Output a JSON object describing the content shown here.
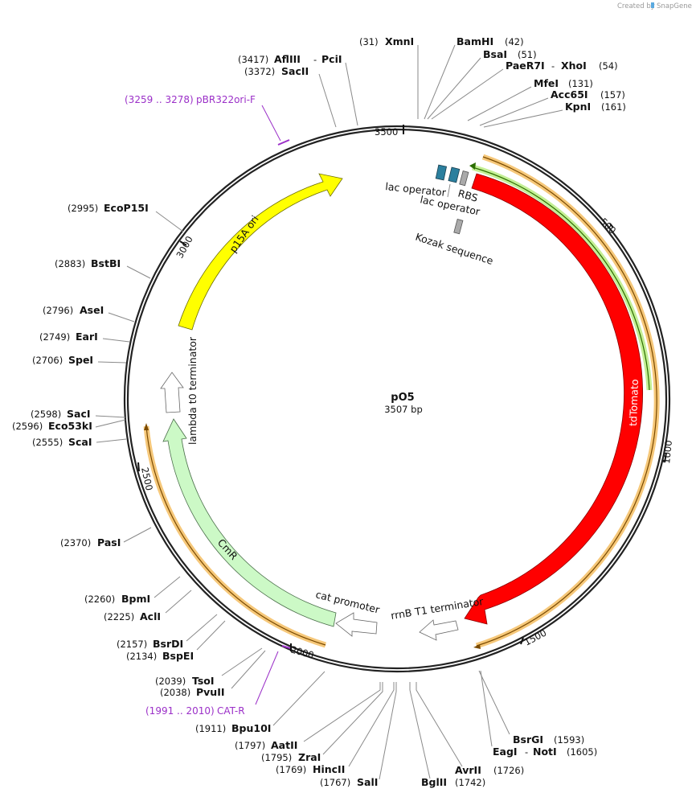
{
  "brand": {
    "created_by": "Created by",
    "product": "SnapGene"
  },
  "plasmid": {
    "name": "pO5",
    "length_label": "3507 bp"
  },
  "ticks": [
    "500",
    "1000",
    "1500",
    "2000",
    "2500",
    "3000",
    "3500"
  ],
  "features": {
    "tdtomato": "tdTomato",
    "p15a": "p15A ori",
    "cmr": "CmR",
    "lambda": "lambda t0 terminator",
    "rrnb": "rrnB T1 terminator",
    "cat_promoter": "cat promoter",
    "lac_operator_1": "lac operator",
    "lac_operator_2": "lac operator",
    "rbs": "RBS",
    "kozak": "Kozak sequence"
  },
  "primers": [
    {
      "range": "(3259 .. 3278)",
      "name": "pBR322ori-F"
    },
    {
      "range": "(1991 .. 2010)",
      "name": "CAT-R"
    }
  ],
  "sites": [
    {
      "pos": "(31)",
      "name": "XmnI"
    },
    {
      "name": "BamHI",
      "pos": "(42)"
    },
    {
      "name": "BsaI",
      "pos": "(51)"
    },
    {
      "name": "PaeR7I",
      "sep": "-",
      "name2": "XhoI",
      "pos": "(54)"
    },
    {
      "name": "MfeI",
      "pos": "(131)"
    },
    {
      "name": "Acc65I",
      "pos": "(157)"
    },
    {
      "name": "KpnI",
      "pos": "(161)"
    },
    {
      "pos": "(3417)",
      "name": "AflIII",
      "sep": "-",
      "name2": "PciI"
    },
    {
      "pos": "(3372)",
      "name": "SacII"
    },
    {
      "pos": "(2995)",
      "name": "EcoP15I"
    },
    {
      "pos": "(2883)",
      "name": "BstBI"
    },
    {
      "pos": "(2796)",
      "name": "AseI"
    },
    {
      "pos": "(2749)",
      "name": "EarI"
    },
    {
      "pos": "(2706)",
      "name": "SpeI"
    },
    {
      "pos": "(2598)",
      "name": "SacI"
    },
    {
      "pos": "(2596)",
      "name": "Eco53kI"
    },
    {
      "pos": "(2555)",
      "name": "ScaI"
    },
    {
      "pos": "(2370)",
      "name": "PasI"
    },
    {
      "pos": "(2260)",
      "name": "BpmI"
    },
    {
      "pos": "(2225)",
      "name": "AclI"
    },
    {
      "pos": "(2157)",
      "name": "BsrDI"
    },
    {
      "pos": "(2134)",
      "name": "BspEI"
    },
    {
      "pos": "(2039)",
      "name": "TsoI"
    },
    {
      "pos": "(2038)",
      "name": "PvuII"
    },
    {
      "pos": "(1911)",
      "name": "Bpu10I"
    },
    {
      "pos": "(1797)",
      "name": "AatII"
    },
    {
      "pos": "(1795)",
      "name": "ZraI"
    },
    {
      "pos": "(1769)",
      "name": "HincII"
    },
    {
      "pos": "(1767)",
      "name": "SalI"
    },
    {
      "name": "BglII",
      "pos": "(1742)"
    },
    {
      "name": "AvrII",
      "pos": "(1726)"
    },
    {
      "name": "BsrGI",
      "pos": "(1593)"
    },
    {
      "name": "EagI",
      "sep": "-",
      "name2": "NotI",
      "pos": "(1605)"
    }
  ]
}
